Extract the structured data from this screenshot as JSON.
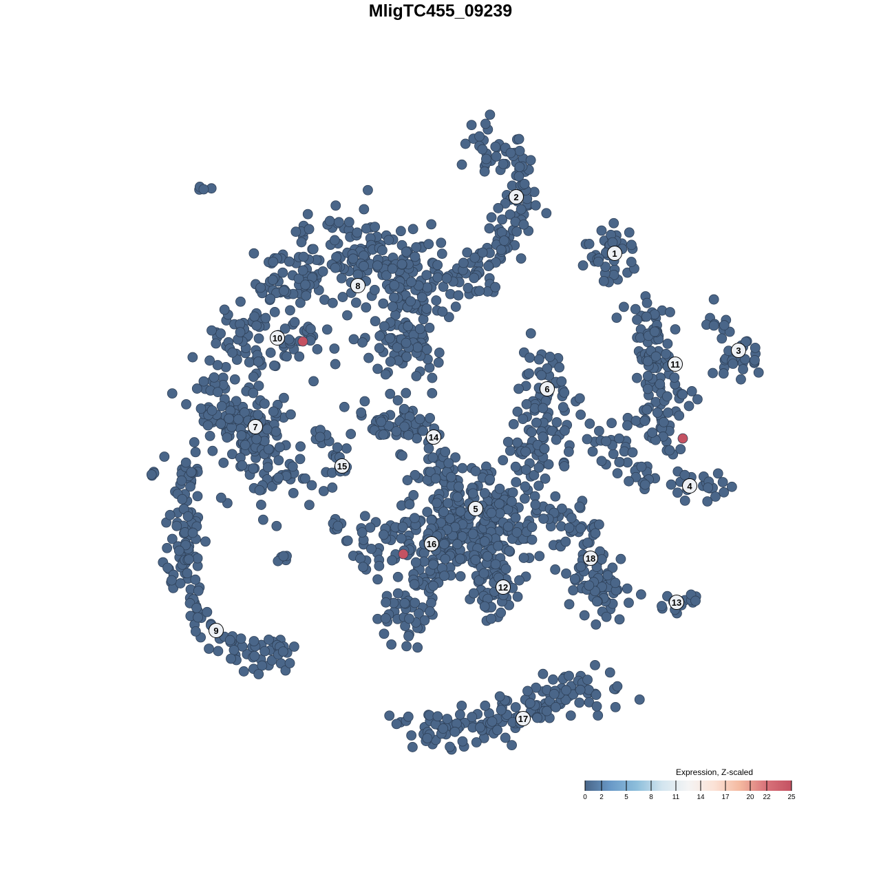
{
  "chart_data": {
    "type": "scatter",
    "title": "MligTC455_09239",
    "xlabel": "",
    "ylabel": "",
    "axes_visible": false,
    "grid": false,
    "point_color": "#4a6689",
    "point_stroke": "#2e4058",
    "label_fill": "#eef1f5",
    "clusters": [
      {
        "label": "1",
        "label_at": [
          25.3,
          27.2
        ],
        "path": [
          [
            24.5,
            28
          ],
          [
            25,
            26.5
          ]
        ],
        "spread": 2.2,
        "n": 40
      },
      {
        "label": "2",
        "label_at": [
          11,
          35.4
        ],
        "path": [
          [
            5,
            44
          ],
          [
            10,
            42
          ],
          [
            11.5,
            38
          ],
          [
            12,
            34
          ],
          [
            10,
            30
          ],
          [
            7,
            26
          ],
          [
            5,
            23
          ],
          [
            2,
            22.5
          ]
        ],
        "spread": 1.6,
        "n": 140
      },
      {
        "label": "3",
        "label_at": [
          43.3,
          13.1
        ],
        "path": [
          [
            38.5,
            19
          ],
          [
            41.5,
            15
          ],
          [
            44,
            12
          ],
          [
            47,
            12
          ],
          [
            41,
            10.5
          ]
        ],
        "spread": 1.2,
        "n": 35
      },
      {
        "label": "4",
        "label_at": [
          36.2,
          -6.6
        ],
        "path": [
          [
            22,
            3
          ],
          [
            26,
            -3
          ],
          [
            30,
            -5
          ],
          [
            34,
            -6
          ],
          [
            38,
            -7
          ],
          [
            42,
            -7
          ]
        ],
        "spread": 1,
        "n": 55
      },
      {
        "label": "5",
        "label_at": [
          5.1,
          -9.9
        ],
        "path": [
          [
            0,
            -6
          ],
          [
            5,
            -10
          ],
          [
            9,
            -12
          ],
          [
            3,
            -14
          ]
        ],
        "spread": 3.5,
        "n": 260
      },
      {
        "label": "6",
        "label_at": [
          15.5,
          7.5
        ],
        "path": [
          [
            13,
            11
          ],
          [
            15.5,
            8
          ],
          [
            14,
            4
          ],
          [
            17,
            2
          ],
          [
            12,
            -4
          ]
        ],
        "spread": 2.3,
        "n": 110
      },
      {
        "label": "7",
        "label_at": [
          -26.9,
          2
        ],
        "path": [
          [
            -33,
            6
          ],
          [
            -27,
            1
          ],
          [
            -25,
            -3
          ],
          [
            -24,
            -6
          ]
        ],
        "spread": 3,
        "n": 170
      },
      {
        "label": "8",
        "label_at": [
          -12,
          22.5
        ],
        "path": [
          [
            -24,
            22
          ],
          [
            -18,
            25
          ],
          [
            -10,
            27
          ],
          [
            -5,
            26
          ],
          [
            -4,
            20
          ],
          [
            -5,
            14
          ],
          [
            -8,
            12
          ]
        ],
        "spread": 3,
        "n": 330
      },
      {
        "label": "9",
        "label_at": [
          -32.6,
          -27.6
        ],
        "path": [
          [
            -37,
            -4
          ],
          [
            -37.5,
            -12
          ],
          [
            -37,
            -20
          ],
          [
            -35,
            -26
          ],
          [
            -31,
            -30
          ],
          [
            -25,
            -32
          ],
          [
            -22,
            -29
          ]
        ],
        "spread": 1.2,
        "n": 150
      },
      {
        "label": "10",
        "label_at": [
          -23.7,
          14.9
        ],
        "path": [
          [
            -33,
            15
          ],
          [
            -28,
            15
          ],
          [
            -23,
            14
          ],
          [
            -18,
            14
          ]
        ],
        "spread": 2.2,
        "n": 80
      },
      {
        "label": "11",
        "label_at": [
          34.1,
          11.1
        ],
        "path": [
          [
            30,
            20
          ],
          [
            31,
            16
          ],
          [
            31,
            12
          ],
          [
            33,
            8
          ],
          [
            32,
            4
          ],
          [
            30,
            2
          ],
          [
            34,
            0.5
          ]
        ],
        "spread": 1.6,
        "n": 120
      },
      {
        "label": "12",
        "label_at": [
          9.1,
          -21.3
        ],
        "path": [
          [
            6,
            -16
          ],
          [
            8,
            -20
          ],
          [
            10,
            -22
          ],
          [
            6,
            -24
          ]
        ],
        "spread": 1.5,
        "n": 60
      },
      {
        "label": "13",
        "label_at": [
          34.3,
          -23.5
        ],
        "path": [
          [
            32,
            -23.8
          ],
          [
            34.5,
            -24
          ],
          [
            37,
            -22.2
          ]
        ],
        "spread": 0.6,
        "n": 14
      },
      {
        "label": "14",
        "label_at": [
          -1,
          0.5
        ],
        "path": [
          [
            -11,
            2.5
          ],
          [
            -5,
            3
          ],
          [
            -2,
            1
          ],
          [
            0,
            -1
          ]
        ],
        "spread": 1.5,
        "n": 60
      },
      {
        "label": "15",
        "label_at": [
          -14.3,
          -3.7
        ],
        "path": [
          [
            -18,
            1.5
          ],
          [
            -15,
            -1
          ],
          [
            -14.5,
            -4
          ],
          [
            -16,
            -7
          ]
        ],
        "spread": 0.7,
        "n": 25
      },
      {
        "label": "16",
        "label_at": [
          -1.3,
          -15
        ],
        "path": [
          [
            -11,
            -17
          ],
          [
            -8,
            -15
          ],
          [
            -5,
            -14
          ],
          [
            -1,
            -12
          ],
          [
            0,
            -17
          ],
          [
            -3,
            -22
          ],
          [
            -7,
            -27
          ]
        ],
        "spread": 2,
        "n": 170
      },
      {
        "label": "17",
        "label_at": [
          12,
          -40.4
        ],
        "path": [
          [
            -6,
            -42.5
          ],
          [
            2,
            -42
          ],
          [
            8,
            -41
          ],
          [
            14,
            -38
          ],
          [
            20,
            -36
          ],
          [
            25,
            -37
          ]
        ],
        "spread": 1.6,
        "n": 150
      },
      {
        "label": "18",
        "label_at": [
          21.8,
          -17.1
        ],
        "path": [
          [
            17,
            -11
          ],
          [
            21,
            -13
          ],
          [
            20,
            -19
          ],
          [
            23,
            -23
          ],
          [
            26,
            -19
          ],
          [
            24,
            -25
          ]
        ],
        "spread": 1.7,
        "n": 100
      },
      {
        "label": "",
        "label_at": null,
        "path": [
          [
            -34.8,
            36.7
          ],
          [
            -34.2,
            36
          ]
        ],
        "spread": 0.3,
        "n": 4
      },
      {
        "label": "",
        "label_at": null,
        "path": [
          [
            -42,
            -5
          ],
          [
            -41.5,
            -4.5
          ]
        ],
        "spread": 0.3,
        "n": 4
      },
      {
        "label": "",
        "label_at": null,
        "path": [
          [
            -23,
            -16.8
          ],
          [
            -22.5,
            -17
          ]
        ],
        "spread": 0.4,
        "n": 5
      },
      {
        "label": "",
        "label_at": null,
        "path": [
          [
            -15.5,
            -12
          ],
          [
            -14.5,
            -12.5
          ]
        ],
        "spread": 0.4,
        "n": 6
      }
    ],
    "highlighted_cells": [
      {
        "x": -20,
        "y": 14.4,
        "value": 25
      },
      {
        "x": 35.2,
        "y": 0.3,
        "value": 25
      },
      {
        "x": -5.4,
        "y": -16.5,
        "value": 25
      }
    ],
    "baseline_value": 0,
    "legend": {
      "title": "Expression, Z-scaled",
      "placement": "bottom-right",
      "range": [
        0,
        25
      ],
      "ticks": [
        "0",
        "2",
        "5",
        "8",
        "11",
        "14",
        "17",
        "20",
        "22",
        "25"
      ],
      "colors": [
        "#4a6689",
        "#6a9ac8",
        "#8dbedb",
        "#d3e5ef",
        "#f4f4f4",
        "#fbe2d6",
        "#f4b9a0",
        "#d9737a",
        "#c45262"
      ]
    }
  }
}
